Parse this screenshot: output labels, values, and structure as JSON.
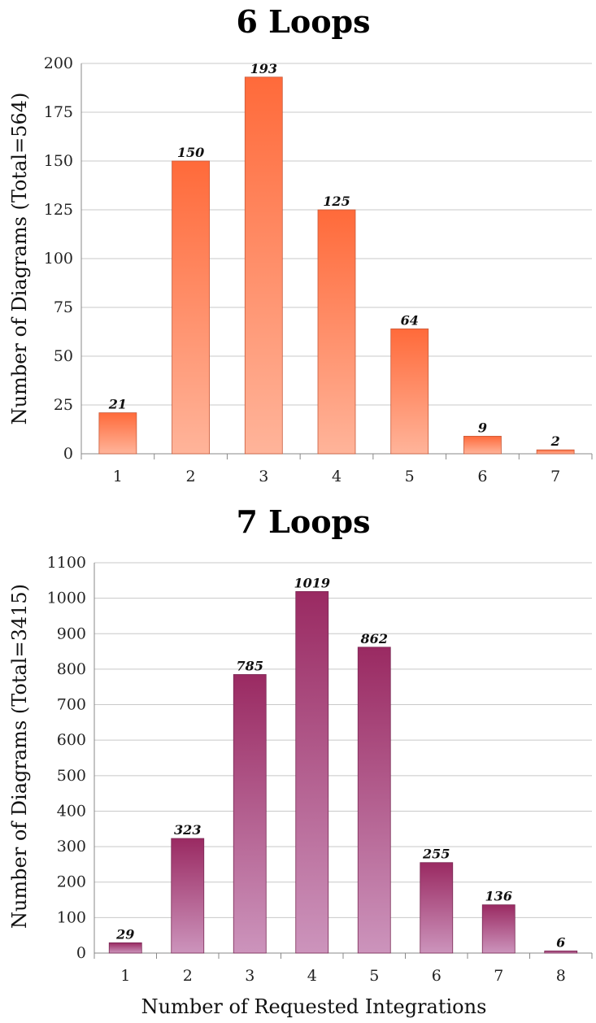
{
  "chart_data": [
    {
      "type": "bar",
      "title": "6 Loops",
      "xlabel": "",
      "ylabel": "Number of Diagrams (Total=564)",
      "categories": [
        "1",
        "2",
        "3",
        "4",
        "5",
        "6",
        "7"
      ],
      "values": [
        21,
        150,
        193,
        125,
        64,
        9,
        2
      ],
      "ylim": [
        0,
        200
      ],
      "yticks": [
        0,
        25,
        50,
        75,
        100,
        125,
        150,
        175,
        200
      ],
      "grid": true,
      "colors": {
        "top": "#ff6a3a",
        "bottom": "#ffb49a",
        "edge": "#c85a3a"
      }
    },
    {
      "type": "bar",
      "title": "7 Loops",
      "xlabel": "Number of Requested Integrations",
      "ylabel": "Number of Diagrams (Total=3415)",
      "categories": [
        "1",
        "2",
        "3",
        "4",
        "5",
        "6",
        "7",
        "8"
      ],
      "values": [
        29,
        323,
        785,
        1019,
        862,
        255,
        136,
        6
      ],
      "ylim": [
        0,
        1100
      ],
      "yticks": [
        0,
        100,
        200,
        300,
        400,
        500,
        600,
        700,
        800,
        900,
        1000,
        1100
      ],
      "grid": true,
      "colors": {
        "top": "#9a2a62",
        "bottom": "#cc94bc",
        "edge": "#7a2a55"
      }
    }
  ]
}
